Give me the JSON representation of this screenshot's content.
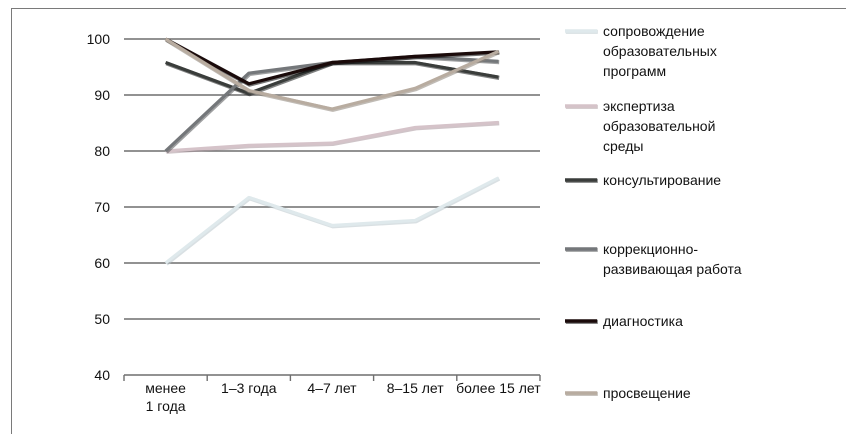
{
  "chart_data": {
    "type": "line",
    "categories": [
      [
        "менее",
        "1 года"
      ],
      [
        "1–3 года"
      ],
      [
        "4–7 лет"
      ],
      [
        "8–15 лет"
      ],
      [
        "более 15 лет"
      ]
    ],
    "ylim": [
      40,
      100
    ],
    "yticks": [
      40,
      50,
      60,
      70,
      80,
      90,
      100
    ],
    "ytick_labels": [
      "40",
      "50",
      "60",
      "70",
      "80",
      "90",
      "100"
    ],
    "grid": true,
    "legend_position": "right",
    "series": [
      {
        "name": "сопровождение образовательных программ",
        "label_lines": [
          "сопровождение",
          "образовательных",
          "программ"
        ],
        "values": [
          60,
          71.7,
          66.7,
          67.6,
          75.2
        ],
        "color": "#dfe9ec",
        "shadow": "#b9c7cc"
      },
      {
        "name": "экспертиза образовательной среды",
        "label_lines": [
          "экспертиза",
          "образовательной",
          "среды"
        ],
        "values": [
          80,
          81,
          81.4,
          84.2,
          85.1
        ],
        "color": "#d5c3c9",
        "shadow": "#a8949b"
      },
      {
        "name": "консультирование",
        "label_lines": [
          "консультирование"
        ],
        "values": [
          95.8,
          90.3,
          95.8,
          95.8,
          93.2
        ],
        "color": "#3a3d3b",
        "shadow": "#1a1c1b"
      },
      {
        "name": "коррекционно-развивающая работа",
        "label_lines": [
          "коррекционно-",
          "развивающая работа"
        ],
        "values": [
          80,
          93.9,
          95.8,
          96.9,
          96
        ],
        "color": "#74777a",
        "shadow": "#505254"
      },
      {
        "name": "диагностика",
        "label_lines": [
          "диагностика"
        ],
        "values": [
          100,
          92,
          95.8,
          96.9,
          97.7
        ],
        "color": "#1a0a0a",
        "shadow": "#000000"
      },
      {
        "name": "просвещение",
        "label_lines": [
          "просвещение"
        ],
        "values": [
          100,
          90.8,
          87.5,
          91.2,
          97.8
        ],
        "color": "#b8aca0",
        "shadow": "#8d8378"
      }
    ]
  }
}
